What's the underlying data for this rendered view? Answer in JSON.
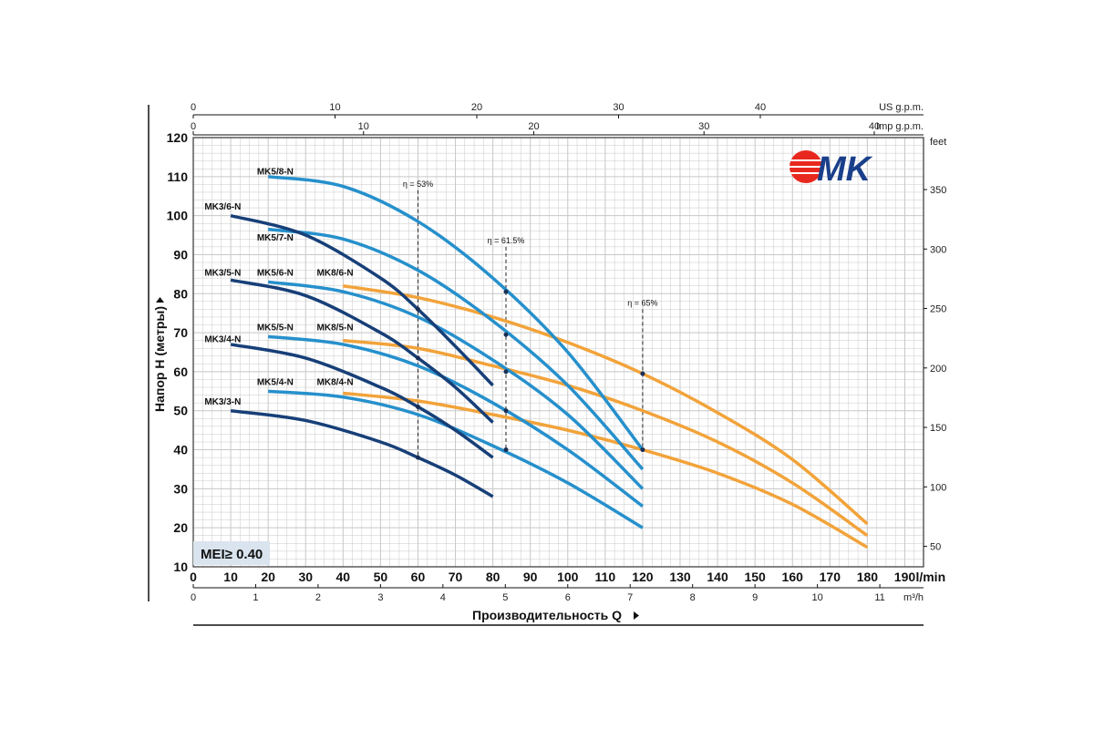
{
  "chart_data": {
    "type": "line",
    "title": "",
    "xlabel": "Производительность Q",
    "ylabel": "Напор H (метры)",
    "x_unit": "l/min",
    "xlim": [
      0,
      195
    ],
    "ylim": [
      10,
      120
    ],
    "x_ticks": [
      0,
      10,
      20,
      30,
      40,
      50,
      60,
      70,
      80,
      90,
      100,
      110,
      120,
      130,
      140,
      150,
      160,
      170,
      180,
      190
    ],
    "x_tick_unit_label": "l/min",
    "y_ticks": [
      10,
      20,
      30,
      40,
      50,
      60,
      70,
      80,
      90,
      100,
      110,
      120
    ],
    "grid": true,
    "secondary_axes": {
      "us_gpm": {
        "label": "US g.p.m.",
        "ticks": [
          0,
          10,
          20,
          30,
          40
        ],
        "factor": 0.264172
      },
      "imp_gpm": {
        "label": "Imp g.p.m.",
        "ticks": [
          0,
          10,
          20,
          30,
          40
        ],
        "factor": 0.219969
      },
      "m3h": {
        "label": "m³/h",
        "ticks": [
          0,
          1,
          2,
          3,
          4,
          5,
          6,
          7,
          8,
          9,
          10,
          11
        ],
        "factor": 0.06
      },
      "feet": {
        "label": "feet",
        "ticks": [
          50,
          100,
          150,
          200,
          250,
          300,
          350
        ],
        "factor": 3.28084
      }
    },
    "badge": "MEI≥ 0.40",
    "logo_text": "MK",
    "colors": {
      "mk3": "#173f78",
      "mk5": "#2690cc",
      "mk8": "#f2a33a",
      "grid": "#c8c8c8",
      "logo": "#e8281e",
      "logo_text": "#1a3f8a"
    },
    "series": [
      {
        "name": "MK3/3-N",
        "group": "mk3",
        "x": [
          10,
          30,
          50,
          60,
          70,
          80
        ],
        "y": [
          50,
          47.5,
          42,
          38,
          33.5,
          28
        ]
      },
      {
        "name": "MK3/4-N",
        "group": "mk3",
        "x": [
          10,
          30,
          50,
          60,
          70,
          80
        ],
        "y": [
          67,
          63.5,
          56,
          51,
          45,
          38
        ]
      },
      {
        "name": "MK3/5-N",
        "group": "mk3",
        "x": [
          10,
          30,
          50,
          60,
          70,
          80
        ],
        "y": [
          83.5,
          79.5,
          70,
          63.5,
          56,
          47
        ]
      },
      {
        "name": "MK3/6-N",
        "group": "mk3",
        "x": [
          10,
          30,
          50,
          60,
          70,
          80
        ],
        "y": [
          100,
          95,
          84,
          76,
          66.5,
          56.5
        ]
      },
      {
        "name": "MK5/4-N",
        "group": "mk5",
        "x": [
          20,
          40,
          60,
          80,
          100,
          120
        ],
        "y": [
          55,
          53.5,
          49,
          41,
          31.5,
          20
        ]
      },
      {
        "name": "MK5/5-N",
        "group": "mk5",
        "x": [
          20,
          40,
          60,
          80,
          100,
          120
        ],
        "y": [
          69,
          67,
          61.5,
          52,
          40,
          25.5
        ]
      },
      {
        "name": "MK5/6-N",
        "group": "mk5",
        "x": [
          20,
          40,
          60,
          80,
          100,
          120
        ],
        "y": [
          83,
          80.5,
          74,
          63,
          49,
          30
        ]
      },
      {
        "name": "MK5/7-N",
        "group": "mk5",
        "x": [
          20,
          40,
          60,
          80,
          100,
          120
        ],
        "y": [
          96.5,
          94,
          86,
          73,
          56.5,
          35
        ]
      },
      {
        "name": "MK5/8-N",
        "group": "mk5",
        "x": [
          20,
          40,
          60,
          80,
          100,
          120
        ],
        "y": [
          110,
          107.5,
          98.5,
          84,
          65,
          40
        ]
      },
      {
        "name": "MK8/4-N",
        "group": "mk8",
        "x": [
          40,
          60,
          80,
          100,
          120,
          140,
          160,
          180
        ],
        "y": [
          54.5,
          52.5,
          49,
          45,
          40,
          34,
          26,
          15
        ]
      },
      {
        "name": "MK8/5-N",
        "group": "mk8",
        "x": [
          40,
          60,
          80,
          100,
          120,
          140,
          160,
          180
        ],
        "y": [
          68,
          66,
          61.5,
          56.5,
          50,
          42,
          31.5,
          18
        ]
      },
      {
        "name": "MK8/6-N",
        "group": "mk8",
        "x": [
          40,
          60,
          80,
          100,
          120,
          140,
          160,
          180
        ],
        "y": [
          82,
          79,
          74,
          67.5,
          59.5,
          49.5,
          37.5,
          21
        ]
      }
    ],
    "series_labels": [
      {
        "text": "MK5/8-N",
        "x": 17,
        "y": 111.5
      },
      {
        "text": "MK3/6-N",
        "x": 3,
        "y": 102.5
      },
      {
        "text": "MK5/7-N",
        "x": 17,
        "y": 94.5
      },
      {
        "text": "MK3/5-N",
        "x": 3,
        "y": 85.5
      },
      {
        "text": "MK5/6-N",
        "x": 17,
        "y": 85.5
      },
      {
        "text": "MK8/6-N",
        "x": 33,
        "y": 85.5
      },
      {
        "text": "MK5/5-N",
        "x": 17,
        "y": 71.5
      },
      {
        "text": "MK8/5-N",
        "x": 33,
        "y": 71.5
      },
      {
        "text": "MK3/4-N",
        "x": 3,
        "y": 68.5
      },
      {
        "text": "MK5/4-N",
        "x": 17,
        "y": 57.5
      },
      {
        "text": "MK8/4-N",
        "x": 33,
        "y": 57.5
      },
      {
        "text": "MK3/3-N",
        "x": 3,
        "y": 52.5
      }
    ],
    "efficiency_lines": [
      {
        "label": "η = 53%",
        "x": 60,
        "y_top": 106.5,
        "y_bottom": 38
      },
      {
        "label": "η = 61.5%",
        "x": 83.5,
        "y_top": 92,
        "y_bottom": 40
      },
      {
        "label": "η = 65%",
        "x": 120,
        "y_top": 76,
        "y_bottom": 40
      }
    ],
    "efficiency_points": [
      {
        "x": 60,
        "y": 38
      },
      {
        "x": 60,
        "y": 51
      },
      {
        "x": 60,
        "y": 63.5
      },
      {
        "x": 60,
        "y": 76
      },
      {
        "x": 83.5,
        "y": 40
      },
      {
        "x": 83.5,
        "y": 50
      },
      {
        "x": 83.5,
        "y": 60
      },
      {
        "x": 83.5,
        "y": 69.5
      },
      {
        "x": 83.5,
        "y": 80.5
      },
      {
        "x": 120,
        "y": 40
      },
      {
        "x": 120,
        "y": 59.5
      }
    ]
  }
}
